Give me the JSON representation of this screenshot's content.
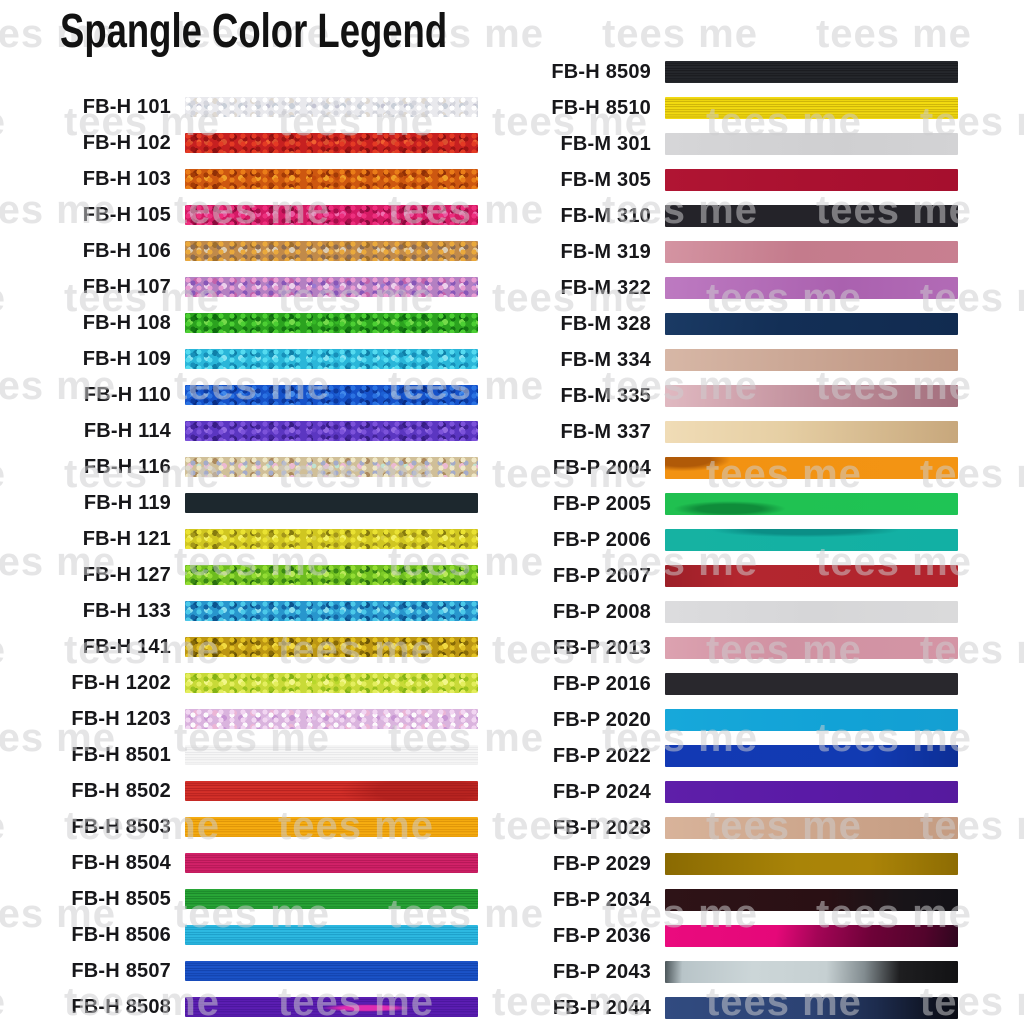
{
  "chart_data": {
    "type": "table",
    "title": "Spangle Color Legend",
    "watermark_text": "tees me",
    "label_color": "#17171a",
    "background_color": "#ffffff",
    "columns": [
      {
        "name": "left",
        "rows": [
          {
            "code": "FB-H 101",
            "style": "glitter",
            "base": "#e9e9ed",
            "dots": [
              "#ffffff",
              "#d5d6dd",
              "#c9cfd8",
              "#dfd9d2",
              "#c4c4d2"
            ]
          },
          {
            "code": "FB-H 102",
            "style": "glitter",
            "base": "#c62020",
            "dots": [
              "#e43a24",
              "#9e1414",
              "#da4f2e",
              "#8c1010",
              "#f06030"
            ]
          },
          {
            "code": "FB-H 103",
            "style": "glitter",
            "base": "#cd5710",
            "dots": [
              "#ea7d18",
              "#a43b06",
              "#f09f28",
              "#902f06",
              "#c34a0c"
            ]
          },
          {
            "code": "FB-H 105",
            "style": "glitter",
            "base": "#d41a64",
            "dots": [
              "#ee2f7e",
              "#a60e4a",
              "#ea57a0",
              "#8c0a3c",
              "#f070b0"
            ]
          },
          {
            "code": "FB-H 106",
            "style": "glitter",
            "base": "#c18a4a",
            "dots": [
              "#eaa93c",
              "#8c6c52",
              "#dcccb4",
              "#9e6e2e",
              "#e8c890"
            ]
          },
          {
            "code": "FB-H 107",
            "style": "glitter",
            "base": "#b480c2",
            "dots": [
              "#e99cd2",
              "#8857b8",
              "#ecd0ec",
              "#c263ab",
              "#9a78d0"
            ]
          },
          {
            "code": "FB-H 108",
            "style": "glitter",
            "base": "#2ba21f",
            "dots": [
              "#4ccf33",
              "#147712",
              "#74da4a",
              "#0c6a0e",
              "#36b826"
            ]
          },
          {
            "code": "FB-H 109",
            "style": "glitter",
            "base": "#2ab6d9",
            "dots": [
              "#54dbf0",
              "#1790ba",
              "#84e2f2",
              "#0f7fa8",
              "#38c8e8"
            ]
          },
          {
            "code": "FB-H 110",
            "style": "glitter",
            "base": "#1652c9",
            "dots": [
              "#2a72e2",
              "#0c3aa0",
              "#4289ea",
              "#092e86",
              "#1c60d4"
            ]
          },
          {
            "code": "FB-H 114",
            "style": "glitter",
            "base": "#5b36c1",
            "dots": [
              "#7c52da",
              "#43239a",
              "#9269e2",
              "#371d85",
              "#6a42cc"
            ]
          },
          {
            "code": "FB-H 116",
            "style": "glitter",
            "base": "#d0bf98",
            "dots": [
              "#efe7c6",
              "#a4abc9",
              "#ecb9d2",
              "#ab8a5e",
              "#bfe2d2"
            ]
          },
          {
            "code": "FB-H 119",
            "style": "solid",
            "base": "#1d282e"
          },
          {
            "code": "FB-H 121",
            "style": "glitter",
            "base": "#d0c621",
            "dots": [
              "#eae232",
              "#a4971a",
              "#f2ef63",
              "#857a0e",
              "#d8d040"
            ]
          },
          {
            "code": "FB-H 127",
            "style": "glitter",
            "base": "#6dbc1f",
            "dots": [
              "#93dd33",
              "#3a8913",
              "#bbe95b",
              "#2a700e",
              "#7ecc28"
            ]
          },
          {
            "code": "FB-H 133",
            "style": "glitter",
            "base": "#2896cd",
            "dots": [
              "#4bc9e9",
              "#1467a6",
              "#8adeee",
              "#0b538e",
              "#34aad8"
            ]
          },
          {
            "code": "FB-H 141",
            "style": "glitter",
            "base": "#bc9613",
            "dots": [
              "#e2c122",
              "#876a07",
              "#f2da42",
              "#6b5404",
              "#ccaa18"
            ]
          },
          {
            "code": "FB-H 1202",
            "style": "glitter",
            "base": "#c8da38",
            "dots": [
              "#e4ee5e",
              "#9cc21e",
              "#f2f68a",
              "#84b214",
              "#b8d82a"
            ]
          },
          {
            "code": "FB-H 1203",
            "style": "glitter",
            "base": "#dab4de",
            "dots": [
              "#f2d6f2",
              "#fdfbfd",
              "#c897d4",
              "#ecb6d6",
              "#e4c4ea"
            ]
          },
          {
            "code": "FB-H 8501",
            "style": "stripes",
            "colors": [
              "#f6f6f6",
              "#e3e3e5"
            ]
          },
          {
            "code": "FB-H 8502",
            "style": "stripes",
            "colors": [
              "#d43029",
              "#ad1d1c"
            ],
            "blob": {
              "color": "rgba(150,22,22,0.45)",
              "at": "82% 50%",
              "size": "110px 26px"
            }
          },
          {
            "code": "FB-H 8503",
            "style": "stripes",
            "colors": [
              "#f6ac10",
              "#d78d06"
            ]
          },
          {
            "code": "FB-H 8504",
            "style": "stripes",
            "colors": [
              "#d22168",
              "#ab1450"
            ]
          },
          {
            "code": "FB-H 8505",
            "style": "stripes",
            "colors": [
              "#28a536",
              "#177e26"
            ]
          },
          {
            "code": "FB-H 8506",
            "style": "stripes",
            "colors": [
              "#2db9e1",
              "#1797c2"
            ]
          },
          {
            "code": "FB-H 8507",
            "style": "stripes",
            "colors": [
              "#1b53c8",
              "#0f3da4"
            ]
          },
          {
            "code": "FB-H 8508",
            "style": "stripes",
            "colors": [
              "#5b1db2",
              "#451496"
            ],
            "blob": {
              "color": "#e02cb0",
              "at": "62% 55%",
              "size": "58px 5px"
            }
          }
        ]
      },
      {
        "name": "right",
        "rows": [
          {
            "code": "FB-H 8509",
            "style": "stripes",
            "colors": [
              "#25272c",
              "#16171b"
            ]
          },
          {
            "code": "FB-H 8510",
            "style": "stripes",
            "colors": [
              "#f2da10",
              "#bfa406"
            ]
          },
          {
            "code": "FB-M 301",
            "style": "gradient",
            "angle": 92,
            "stops": [
              "#d6d6d8 0%",
              "#cfcfd1 60%",
              "#d3d3d5 100%"
            ]
          },
          {
            "code": "FB-M 305",
            "style": "gradient",
            "angle": 90,
            "stops": [
              "#b01533 0%",
              "#aa1130 50%",
              "#a60f2e 100%"
            ]
          },
          {
            "code": "FB-M 310",
            "style": "solid",
            "base": "#242329"
          },
          {
            "code": "FB-M 319",
            "style": "gradient",
            "angle": 95,
            "stops": [
              "#d494a2 0%",
              "#c47b8c 45%",
              "#c87f90 100%"
            ]
          },
          {
            "code": "FB-M 322",
            "style": "gradient",
            "angle": 95,
            "stops": [
              "#bd7ac1 0%",
              "#aa61af 60%",
              "#b26bb6 100%"
            ]
          },
          {
            "code": "FB-M 328",
            "style": "gradient",
            "angle": 100,
            "stops": [
              "#1a3a64 0%",
              "#132f56 40%",
              "#112b50 100%"
            ]
          },
          {
            "code": "FB-M 334",
            "style": "gradient",
            "angle": 92,
            "stops": [
              "#d7b7a6 0%",
              "#cba795 45%",
              "#bd937e 100%"
            ]
          },
          {
            "code": "FB-M 335",
            "style": "gradient",
            "angle": 93,
            "stops": [
              "#e0b9c1 0%",
              "#c4939f 45%",
              "#a36f7d 100%"
            ]
          },
          {
            "code": "FB-M 337",
            "style": "gradient",
            "angle": 92,
            "stops": [
              "#f0dcb6 0%",
              "#e6cfa4 40%",
              "#c7a77c 100%"
            ]
          },
          {
            "code": "FB-P 2004",
            "style": "gradient",
            "angle": 90,
            "stops": [
              "#f29212 0%",
              "#f39413 100%"
            ],
            "blob": {
              "color": "#b05a08",
              "at": "6% 12%",
              "size": "62px 15px"
            }
          },
          {
            "code": "FB-P 2005",
            "style": "gradient",
            "angle": 90,
            "stops": [
              "#20c050 0%",
              "#1fc455 100%"
            ],
            "blob": {
              "color": "#0f8c3a",
              "at": "22% 72%",
              "size": "72px 10px"
            }
          },
          {
            "code": "FB-P 2006",
            "style": "gradient",
            "angle": 90,
            "stops": [
              "#16b2a2 0%",
              "#12b0a4 100%"
            ],
            "blob": {
              "color": "#0b8e86",
              "at": "48% 6%",
              "size": "120px 9px"
            }
          },
          {
            "code": "FB-P 2007",
            "style": "gradient",
            "angle": 90,
            "stops": [
              "#9c1f28 0%",
              "#b3262f 25%",
              "#b2242d 100%"
            ]
          },
          {
            "code": "FB-P 2008",
            "style": "gradient",
            "angle": 90,
            "stops": [
              "#dcdcde 0%",
              "#d6d6d8 50%",
              "#dadadb 100%"
            ]
          },
          {
            "code": "FB-P 2013",
            "style": "gradient",
            "angle": 93,
            "stops": [
              "#dca2b0 0%",
              "#d091a2 40%",
              "#d495a5 100%"
            ]
          },
          {
            "code": "FB-P 2016",
            "style": "solid",
            "base": "#29282d"
          },
          {
            "code": "FB-P 2020",
            "style": "gradient",
            "angle": 90,
            "stops": [
              "#17a8da 0%",
              "#12a2d6 60%",
              "#149fd2 100%"
            ]
          },
          {
            "code": "FB-P 2022",
            "style": "gradient",
            "angle": 90,
            "stops": [
              "#1239b4 0%",
              "#113ab2 70%",
              "#0d2f96 100%"
            ]
          },
          {
            "code": "FB-P 2024",
            "style": "gradient",
            "angle": 90,
            "stops": [
              "#5e1fa9 0%",
              "#5a1aa6 50%",
              "#561a9e 100%"
            ]
          },
          {
            "code": "FB-P 2028",
            "style": "gradient",
            "angle": 90,
            "stops": [
              "#d8b39a 0%",
              "#cda68c 50%",
              "#c59c82 100%"
            ]
          },
          {
            "code": "FB-P 2029",
            "style": "gradient",
            "angle": 90,
            "stops": [
              "#8a6a02 0%",
              "#a98408 45%",
              "#ab8408 70%",
              "#8d6c03 100%"
            ]
          },
          {
            "code": "FB-P 2034",
            "style": "gradient",
            "angle": 90,
            "stops": [
              "#2e1317 0%",
              "#2a1014 55%",
              "#191418 80%",
              "#131217 100%"
            ]
          },
          {
            "code": "FB-P 2036",
            "style": "gradient",
            "angle": 100,
            "stops": [
              "#ea0b7e 0%",
              "#e50879 38%",
              "#a30556 52%",
              "#6e0238 70%",
              "#53042c 88%",
              "#2e061e 100%"
            ]
          },
          {
            "code": "FB-P 2043",
            "style": "gradient",
            "angle": 92,
            "stops": [
              "#4a5458 0%",
              "#b8c4c8 6%",
              "#ccd6d8 30%",
              "#c6d0d2 55%",
              "#828c90 68%",
              "#1e1e20 80%",
              "#121214 100%"
            ]
          },
          {
            "code": "FB-P 2044",
            "style": "gradient",
            "angle": 90,
            "stops": [
              "#314b80 0%",
              "#2c4273 50%",
              "#1d2c4e 72%",
              "#0e1220 92%",
              "#0b0e16 100%"
            ]
          }
        ]
      }
    ]
  }
}
